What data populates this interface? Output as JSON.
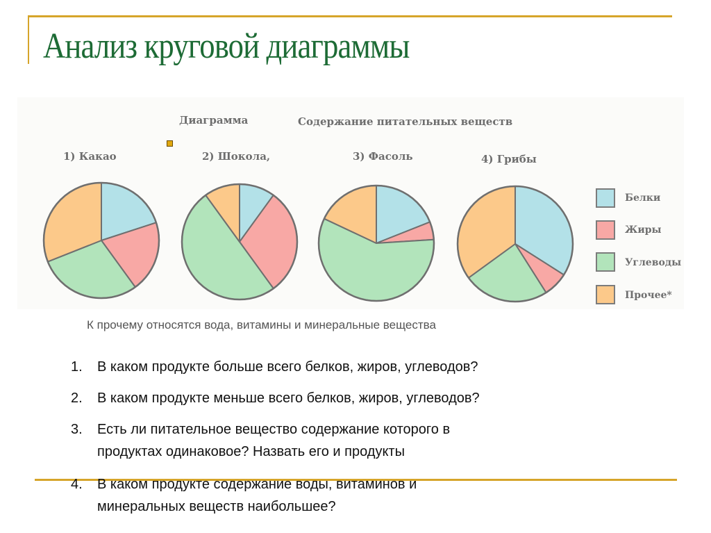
{
  "slide": {
    "title": "Анализ круговой диаграммы",
    "accent_color": "#d6a52a",
    "title_color": "#1d6b35"
  },
  "figure": {
    "caption_left": "Диаграмма",
    "caption_right": "Содержание питательных веществ",
    "pies": [
      {
        "label": "1) Какао"
      },
      {
        "label": "2) Шокола,"
      },
      {
        "label": "3) Фасоль"
      },
      {
        "label": "4) Грибы"
      }
    ],
    "legend": [
      {
        "label": "Белки",
        "color": "#b3e1e8"
      },
      {
        "label": "Жиры",
        "color": "#f8a8a5"
      },
      {
        "label": "Углеводы",
        "color": "#b2e4bb"
      },
      {
        "label": "Прочее*",
        "color": "#fcc98a"
      }
    ]
  },
  "note": "К прочему относятся вода, витамины и минеральные вещества",
  "questions": [
    {
      "num": "1.",
      "lines": [
        "В каком продукте больше всего белков, жиров, углеводов?"
      ]
    },
    {
      "num": "2.",
      "lines": [
        "В каком продукте меньше всего белков, жиров, углеводов?"
      ]
    },
    {
      "num": "3.",
      "lines": [
        "Есть ли питательное вещество содержание которого в",
        "продуктах одинаковое? Назвать его и продукты"
      ]
    },
    {
      "num": "4.",
      "lines": [
        "В каком продукте содержание воды, витаминов и",
        "минеральных веществ наибольшее?"
      ]
    }
  ],
  "chart_data": {
    "type": "pie",
    "title": "Диаграмма. Содержание питательных веществ",
    "categories": [
      "Белки",
      "Жиры",
      "Углеводы",
      "Прочее*"
    ],
    "colors": [
      "#b3e1e8",
      "#f8a8a5",
      "#b2e4bb",
      "#fcc98a"
    ],
    "legend_position": "right",
    "unit": "% (estimated from slice angles)",
    "series": [
      {
        "name": "1) Какао",
        "values": [
          20,
          20,
          29,
          31
        ]
      },
      {
        "name": "2) Шоколад",
        "values": [
          10,
          30,
          50,
          10
        ]
      },
      {
        "name": "3) Фасоль",
        "values": [
          19,
          5,
          58,
          18
        ]
      },
      {
        "name": "4) Грибы",
        "values": [
          34,
          7,
          24,
          35
        ]
      }
    ],
    "annotations": [
      "* К прочему относятся вода, витамины и минеральные вещества"
    ]
  }
}
